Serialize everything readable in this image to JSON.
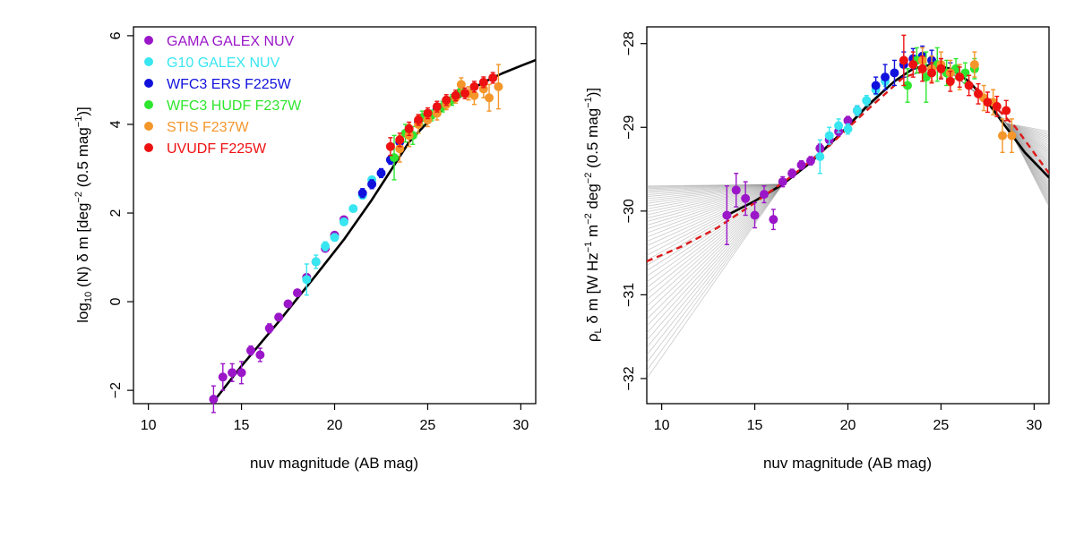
{
  "chart_data": [
    {
      "type": "scatter",
      "panel": "left",
      "xlabel": "nuv magnitude (AB mag)",
      "ylabel_parts": {
        "prefix": "log",
        "sub": "10",
        "mid": " (N) δ m [deg",
        "sup1": "−2",
        "mid2": " (0.5 mag",
        "sup2": "−1",
        "suffix": ")]"
      },
      "xlim": [
        9.2,
        30.8
      ],
      "ylim": [
        -2.3,
        6.2
      ],
      "xticks": [
        10,
        15,
        20,
        25,
        30
      ],
      "yticks": [
        -2,
        0,
        2,
        4,
        6
      ],
      "xtick_labels": [
        "10",
        "15",
        "20",
        "25",
        "30"
      ],
      "ytick_labels": [
        "−2",
        "0",
        "2",
        "4",
        "6"
      ],
      "legend_position": "top-left",
      "legend": [
        {
          "label": "GAMA GALEX NUV",
          "color": "#9a16c8"
        },
        {
          "label": "G10 GALEX NUV",
          "color": "#37e6f0"
        },
        {
          "label": "WFC3 ERS F225W",
          "color": "#1111dd"
        },
        {
          "label": "WFC3 HUDF F237W",
          "color": "#2ee62e"
        },
        {
          "label": "STIS F237W",
          "color": "#f4962a"
        },
        {
          "label": "UVUDF F225W",
          "color": "#ee1111"
        }
      ],
      "fit": {
        "x": [
          13.6,
          15,
          17,
          19,
          20.5,
          22,
          23,
          24,
          25,
          26,
          27,
          28,
          29,
          30,
          30.8
        ],
        "y": [
          -2.2,
          -1.45,
          -0.45,
          0.6,
          1.4,
          2.3,
          2.95,
          3.6,
          4.05,
          4.4,
          4.7,
          4.95,
          5.15,
          5.32,
          5.45
        ]
      },
      "series": [
        {
          "name": "GAMA GALEX NUV",
          "color": "#9a16c8",
          "points": [
            [
              13.5,
              -2.2,
              0.3
            ],
            [
              14,
              -1.7,
              0.3
            ],
            [
              14.5,
              -1.6,
              0.2
            ],
            [
              15,
              -1.6,
              0.25
            ],
            [
              15.5,
              -1.1,
              0.1
            ],
            [
              16,
              -1.2,
              0.15
            ],
            [
              16.5,
              -0.6,
              0.1
            ],
            [
              17,
              -0.35,
              0.08
            ],
            [
              17.5,
              -0.05,
              0.06
            ],
            [
              18,
              0.2,
              0.06
            ],
            [
              18.5,
              0.55,
              0.06
            ],
            [
              19,
              0.9,
              0.05
            ],
            [
              19.5,
              1.2,
              0.05
            ],
            [
              20,
              1.5,
              0.05
            ],
            [
              20.5,
              1.85,
              0.05
            ]
          ]
        },
        {
          "name": "G10 GALEX NUV",
          "color": "#37e6f0",
          "points": [
            [
              18.5,
              0.5,
              0.35
            ],
            [
              19,
              0.9,
              0.15
            ],
            [
              19.5,
              1.25,
              0.1
            ],
            [
              20,
              1.45,
              0.08
            ],
            [
              20.5,
              1.8,
              0.06
            ],
            [
              21,
              2.1,
              0.06
            ],
            [
              21.5,
              2.4,
              0.06
            ],
            [
              22,
              2.75,
              0.06
            ]
          ]
        },
        {
          "name": "WFC3 ERS F225W",
          "color": "#1111dd",
          "points": [
            [
              21.5,
              2.45,
              0.1
            ],
            [
              22,
              2.65,
              0.1
            ],
            [
              22.5,
              2.9,
              0.1
            ],
            [
              23,
              3.2,
              0.1
            ],
            [
              23.5,
              3.6,
              0.1
            ],
            [
              24,
              3.85,
              0.1
            ],
            [
              24.5,
              4.05,
              0.1
            ],
            [
              25,
              4.2,
              0.1
            ],
            [
              25.5,
              4.35,
              0.1
            ]
          ]
        },
        {
          "name": "WFC3 HUDF F237W",
          "color": "#2ee62e",
          "points": [
            [
              23.2,
              3.25,
              0.5
            ],
            [
              23.8,
              3.8,
              0.2
            ],
            [
              24.2,
              3.75,
              0.2
            ],
            [
              24.7,
              4.15,
              0.15
            ],
            [
              25.2,
              4.2,
              0.12
            ],
            [
              25.8,
              4.4,
              0.12
            ],
            [
              26.3,
              4.55,
              0.12
            ],
            [
              26.8,
              4.75,
              0.12
            ]
          ]
        },
        {
          "name": "STIS F237W",
          "color": "#f4962a",
          "points": [
            [
              23.5,
              3.45,
              0.3
            ],
            [
              24,
              3.75,
              0.25
            ],
            [
              24.5,
              4.0,
              0.2
            ],
            [
              25,
              4.1,
              0.15
            ],
            [
              25.5,
              4.25,
              0.15
            ],
            [
              26,
              4.45,
              0.12
            ],
            [
              26.5,
              4.6,
              0.12
            ],
            [
              26.8,
              4.9,
              0.15
            ],
            [
              27.2,
              4.7,
              0.15
            ],
            [
              27.5,
              4.65,
              0.2
            ],
            [
              28,
              4.8,
              0.2
            ],
            [
              28.3,
              4.6,
              0.3
            ],
            [
              28.8,
              4.85,
              0.5
            ]
          ]
        },
        {
          "name": "UVUDF F225W",
          "color": "#ee1111",
          "points": [
            [
              23,
              3.5,
              0.2
            ],
            [
              23.5,
              3.65,
              0.15
            ],
            [
              24,
              3.9,
              0.15
            ],
            [
              24.5,
              4.1,
              0.12
            ],
            [
              25,
              4.25,
              0.12
            ],
            [
              25.5,
              4.4,
              0.12
            ],
            [
              26,
              4.55,
              0.12
            ],
            [
              26.5,
              4.65,
              0.12
            ],
            [
              27,
              4.7,
              0.12
            ],
            [
              27.5,
              4.85,
              0.12
            ],
            [
              28,
              4.95,
              0.12
            ],
            [
              28.5,
              5.05,
              0.12
            ]
          ]
        }
      ]
    },
    {
      "type": "scatter",
      "panel": "right",
      "xlabel": "nuv magnitude (AB mag)",
      "ylabel_parts": {
        "prefix": "ρ",
        "sub": "L",
        "mid": " δ m [W Hz",
        "sup1": "−1",
        "mid2": " m",
        "sup2": "−2",
        "mid3": " deg",
        "sup3": "−2",
        "mid4": " (0.5 mag",
        "sup4": "−1",
        "suffix": ")]"
      },
      "xlim": [
        9.2,
        30.8
      ],
      "ylim": [
        -32.3,
        -27.8
      ],
      "xticks": [
        10,
        15,
        20,
        25,
        30
      ],
      "yticks": [
        -32,
        -31,
        -30,
        -29,
        -28
      ],
      "xtick_labels": [
        "10",
        "15",
        "20",
        "25",
        "30"
      ],
      "ytick_labels": [
        "−32",
        "−31",
        "−30",
        "−29",
        "−28"
      ],
      "fit": {
        "x": [
          13.5,
          15,
          16.5,
          18,
          19.5,
          21,
          22.5,
          23.5,
          24.5,
          25.5,
          26.5,
          27.5,
          28.5,
          29.5,
          30.8
        ],
        "y": [
          -30.05,
          -29.88,
          -29.68,
          -29.42,
          -29.1,
          -28.75,
          -28.45,
          -28.3,
          -28.25,
          -28.3,
          -28.45,
          -28.7,
          -29.0,
          -29.3,
          -29.6
        ]
      },
      "fit_dashed": {
        "x": [
          9.2,
          11,
          13,
          15,
          17,
          19,
          21,
          23,
          25,
          27,
          29,
          30.8
        ],
        "y": [
          -30.6,
          -30.43,
          -30.2,
          -29.9,
          -29.58,
          -29.22,
          -28.8,
          -28.4,
          -28.27,
          -28.55,
          -29.0,
          -29.55
        ]
      },
      "series": [
        {
          "name": "GAMA GALEX NUV",
          "color": "#9a16c8",
          "points": [
            [
              13.5,
              -30.05,
              0.35
            ],
            [
              14,
              -29.75,
              0.2
            ],
            [
              14.5,
              -29.85,
              0.2
            ],
            [
              15,
              -30.05,
              0.15
            ],
            [
              15.5,
              -29.8,
              0.1
            ],
            [
              16,
              -30.1,
              0.12
            ],
            [
              16.5,
              -29.65,
              0.06
            ],
            [
              17,
              -29.55,
              0.05
            ],
            [
              17.5,
              -29.45,
              0.05
            ],
            [
              18,
              -29.4,
              0.05
            ],
            [
              18.5,
              -29.25,
              0.05
            ],
            [
              19,
              -29.15,
              0.05
            ],
            [
              19.5,
              -29.05,
              0.05
            ],
            [
              20,
              -28.92,
              0.05
            ],
            [
              20.5,
              -28.8,
              0.05
            ]
          ]
        },
        {
          "name": "G10 GALEX NUV",
          "color": "#37e6f0",
          "points": [
            [
              18.5,
              -29.35,
              0.2
            ],
            [
              19,
              -29.1,
              0.1
            ],
            [
              19.5,
              -28.98,
              0.08
            ],
            [
              20,
              -29.02,
              0.06
            ],
            [
              20.5,
              -28.8,
              0.06
            ],
            [
              21,
              -28.68,
              0.06
            ],
            [
              21.5,
              -28.55,
              0.06
            ],
            [
              22,
              -28.45,
              0.06
            ]
          ]
        },
        {
          "name": "WFC3 ERS F225W",
          "color": "#1111dd",
          "points": [
            [
              21.5,
              -28.5,
              0.1
            ],
            [
              22,
              -28.4,
              0.15
            ],
            [
              22.5,
              -28.35,
              0.15
            ],
            [
              23,
              -28.25,
              0.15
            ],
            [
              23.5,
              -28.18,
              0.12
            ],
            [
              24,
              -28.15,
              0.12
            ],
            [
              24.5,
              -28.2,
              0.12
            ],
            [
              25,
              -28.3,
              0.12
            ],
            [
              25.5,
              -28.35,
              0.12
            ]
          ]
        },
        {
          "name": "WFC3 HUDF F237W",
          "color": "#2ee62e",
          "points": [
            [
              23.2,
              -28.5,
              0.2
            ],
            [
              23.7,
              -28.2,
              0.15
            ],
            [
              24.2,
              -28.4,
              0.3
            ],
            [
              24.8,
              -28.25,
              0.2
            ],
            [
              25.3,
              -28.35,
              0.15
            ],
            [
              25.8,
              -28.3,
              0.12
            ],
            [
              26.3,
              -28.35,
              0.12
            ],
            [
              26.8,
              -28.3,
              0.12
            ]
          ]
        },
        {
          "name": "STIS F237W",
          "color": "#f4962a",
          "points": [
            [
              24,
              -28.2,
              0.15
            ],
            [
              24.5,
              -28.3,
              0.15
            ],
            [
              25,
              -28.25,
              0.15
            ],
            [
              25.5,
              -28.35,
              0.15
            ],
            [
              26,
              -28.4,
              0.15
            ],
            [
              26.8,
              -28.25,
              0.15
            ],
            [
              27.3,
              -28.65,
              0.15
            ],
            [
              27.8,
              -28.7,
              0.15
            ],
            [
              28.3,
              -29.1,
              0.2
            ],
            [
              28.8,
              -29.1,
              0.2
            ]
          ]
        },
        {
          "name": "UVUDF F225W",
          "color": "#ee1111",
          "points": [
            [
              23,
              -28.2,
              0.3
            ],
            [
              23.5,
              -28.25,
              0.15
            ],
            [
              24,
              -28.3,
              0.15
            ],
            [
              24.5,
              -28.35,
              0.12
            ],
            [
              25,
              -28.3,
              0.12
            ],
            [
              25.5,
              -28.45,
              0.12
            ],
            [
              26,
              -28.4,
              0.12
            ],
            [
              26.5,
              -28.5,
              0.12
            ],
            [
              27,
              -28.6,
              0.12
            ],
            [
              27.5,
              -28.7,
              0.12
            ],
            [
              28,
              -28.75,
              0.12
            ],
            [
              28.5,
              -28.8,
              0.12
            ]
          ]
        }
      ]
    }
  ]
}
